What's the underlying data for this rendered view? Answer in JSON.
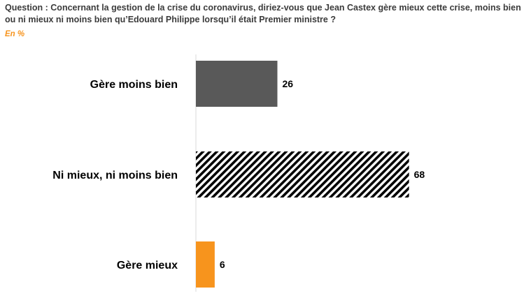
{
  "question": "Question : Concernant la gestion de la crise du coronavirus, diriez-vous que Jean Castex gère mieux cette crise, moins bien ou ni mieux ni moins bien qu’Edouard Philippe lorsqu’il était Premier ministre ?",
  "unit": "En %",
  "colors": {
    "accent": "#f7941d",
    "dark_gray": "#595959",
    "text": "#000000"
  },
  "chart_data": {
    "type": "bar",
    "orientation": "horizontal",
    "categories": [
      "Gère moins bien",
      "Ni mieux, ni moins bien",
      "Gère mieux"
    ],
    "values": [
      26,
      68,
      6
    ],
    "bar_styles": [
      "solid-gray",
      "diagonal-hatch",
      "solid-orange"
    ],
    "xlim": [
      0,
      100
    ],
    "grid": false,
    "title": "",
    "xlabel": "",
    "ylabel": ""
  }
}
